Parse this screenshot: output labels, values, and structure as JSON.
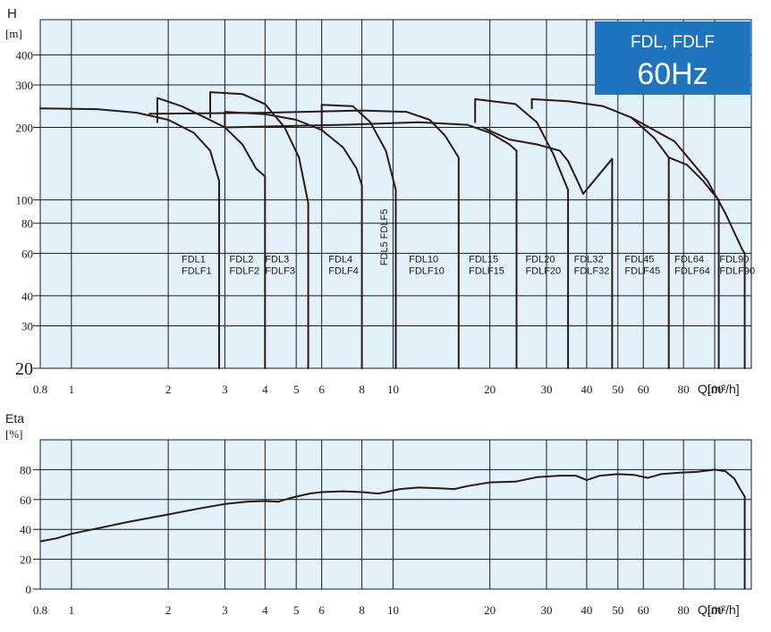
{
  "colors": {
    "plot_bg": "#e3f1fa",
    "grid": "#1a1a1a",
    "curve": "#2b1a14",
    "badge_bg": "#1f73bf",
    "badge_text": "#ffffff"
  },
  "chart_data": [
    {
      "id": "head",
      "type": "line",
      "xscale": "log",
      "yscale": "log",
      "xlim": [
        0.8,
        130
      ],
      "ylim": [
        20,
        560
      ],
      "grid": true,
      "ylabel": "H",
      "yunit": "[m]",
      "xlabel": "Q[m²/h]",
      "xticks": [
        {
          "v": 0.8,
          "label": "0.8"
        },
        {
          "v": 1,
          "label": "1"
        },
        {
          "v": 2,
          "label": "2"
        },
        {
          "v": 3,
          "label": "3"
        },
        {
          "v": 4,
          "label": "4"
        },
        {
          "v": 5,
          "label": "5"
        },
        {
          "v": 6,
          "label": "6"
        },
        {
          "v": 8,
          "label": "8"
        },
        {
          "v": 10,
          "label": "10"
        },
        {
          "v": 20,
          "label": "20"
        },
        {
          "v": 30,
          "label": "30"
        },
        {
          "v": 40,
          "label": "40"
        },
        {
          "v": 50,
          "label": "50"
        },
        {
          "v": 60,
          "label": "60"
        },
        {
          "v": 80,
          "label": "80"
        },
        {
          "v": 100,
          "label": "100"
        }
      ],
      "yticks": [
        {
          "v": 20,
          "label": "20"
        },
        {
          "v": 30,
          "label": "30"
        },
        {
          "v": 40,
          "label": "40"
        },
        {
          "v": 60,
          "label": "60"
        },
        {
          "v": 80,
          "label": "80"
        },
        {
          "v": 100,
          "label": "100"
        },
        {
          "v": 200,
          "label": "200"
        },
        {
          "v": 300,
          "label": "300"
        },
        {
          "v": 400,
          "label": "400"
        }
      ],
      "badge": {
        "line1": "FDL, FDLF",
        "line2": "60Hz"
      },
      "series": [
        {
          "name": "FDL1 FDLF1",
          "points": [
            [
              0.8,
              240
            ],
            [
              1.2,
              238
            ],
            [
              1.6,
              230
            ],
            [
              2.0,
              215
            ],
            [
              2.4,
              190
            ],
            [
              2.7,
              160
            ],
            [
              2.88,
              120
            ],
            [
              2.88,
              20
            ]
          ]
        },
        {
          "name": "FDL2 FDLF2",
          "points": [
            [
              1.85,
              210
            ],
            [
              1.85,
              265
            ],
            [
              2.2,
              245
            ],
            [
              2.6,
              220
            ],
            [
              3.0,
              200
            ],
            [
              3.4,
              170
            ],
            [
              3.75,
              135
            ],
            [
              4.0,
              125
            ],
            [
              4.0,
              20
            ]
          ]
        },
        {
          "name": "FDL3 FDLF3",
          "points": [
            [
              2.7,
              220
            ],
            [
              2.7,
              280
            ],
            [
              3.4,
              275
            ],
            [
              4.0,
              250
            ],
            [
              4.6,
              200
            ],
            [
              5.1,
              150
            ],
            [
              5.45,
              97
            ],
            [
              5.45,
              20
            ]
          ]
        },
        {
          "name": "FDL4 FDLF4",
          "points": [
            [
              3.0,
              200
            ],
            [
              3.0,
              232
            ],
            [
              4.0,
              227
            ],
            [
              5.0,
              215
            ],
            [
              6.0,
              195
            ],
            [
              7.0,
              165
            ],
            [
              7.7,
              135
            ],
            [
              8.0,
              115
            ],
            [
              8.0,
              20
            ]
          ]
        },
        {
          "name": "FDL5 FDLF5",
          "points": [
            [
              6.0,
              195
            ],
            [
              6.0,
              248
            ],
            [
              7.5,
              245
            ],
            [
              8.5,
              210
            ],
            [
              9.5,
              160
            ],
            [
              10.2,
              110
            ],
            [
              10.2,
              20
            ]
          ]
        },
        {
          "name": "FDL10 FDLF10",
          "points": [
            [
              1.75,
              228
            ],
            [
              4.0,
              230
            ],
            [
              8.0,
              235
            ],
            [
              11.0,
              232
            ],
            [
              13.0,
              215
            ],
            [
              14.5,
              185
            ],
            [
              16.0,
              150
            ],
            [
              16.0,
              20
            ]
          ]
        },
        {
          "name": "FDL15 FDLF15",
          "points": [
            [
              3.0,
              200
            ],
            [
              7.0,
              205
            ],
            [
              12.0,
              210
            ],
            [
              17.0,
              205
            ],
            [
              20.0,
              190
            ],
            [
              23.0,
              170
            ],
            [
              24.2,
              160
            ],
            [
              24.2,
              20
            ]
          ]
        },
        {
          "name": "FDL20 FDLF20",
          "points": [
            [
              18.0,
              210
            ],
            [
              18.0,
              262
            ],
            [
              24.0,
              250
            ],
            [
              28.0,
              210
            ],
            [
              31.5,
              155
            ],
            [
              35.0,
              110
            ],
            [
              35.0,
              20
            ]
          ]
        },
        {
          "name": "FDL32 FDLF32",
          "points": [
            [
              19.0,
              200
            ],
            [
              23.0,
              178
            ],
            [
              28.0,
              170
            ],
            [
              33.0,
              160
            ],
            [
              35.0,
              145
            ],
            [
              38.0,
              115
            ],
            [
              39.0,
              106
            ],
            [
              48.0,
              148
            ],
            [
              48.0,
              20
            ]
          ]
        },
        {
          "name": "FDL45 FDLF45",
          "points": [
            [
              27.0,
              240
            ],
            [
              27.0,
              262
            ],
            [
              35.0,
              257
            ],
            [
              45.0,
              245
            ],
            [
              55.0,
              220
            ],
            [
              65.0,
              180
            ],
            [
              72.0,
              150
            ],
            [
              72.0,
              20
            ]
          ]
        },
        {
          "name": "FDL64 FDLF64",
          "points": [
            [
              72.0,
              150
            ],
            [
              82.0,
              140
            ],
            [
              92.0,
              120
            ],
            [
              98.0,
              108
            ],
            [
              103.0,
              100
            ],
            [
              103.0,
              20
            ]
          ]
        },
        {
          "name": "FDL90 FDLF90",
          "points": [
            [
              55.0,
              220
            ],
            [
              75.0,
              175
            ],
            [
              95.0,
              120
            ],
            [
              108.0,
              88
            ],
            [
              122.0,
              62
            ],
            [
              124.0,
              60
            ],
            [
              124.0,
              20
            ]
          ]
        }
      ],
      "labels": [
        {
          "q": 2.2,
          "h": 55,
          "l1": "FDL1",
          "l2": "FDLF1"
        },
        {
          "q": 3.1,
          "h": 55,
          "l1": "FDL2",
          "l2": "FDLF2"
        },
        {
          "q": 4.0,
          "h": 55,
          "l1": "FDL3",
          "l2": "FDLF3"
        },
        {
          "q": 6.3,
          "h": 55,
          "l1": "FDL4",
          "l2": "FDLF4"
        },
        {
          "q": 11.2,
          "h": 55,
          "l1": "FDL10",
          "l2": "FDLF10"
        },
        {
          "q": 17.2,
          "h": 55,
          "l1": "FDL15",
          "l2": "FDLF15"
        },
        {
          "q": 25.8,
          "h": 55,
          "l1": "FDL20",
          "l2": "FDLF20"
        },
        {
          "q": 36.5,
          "h": 55,
          "l1": "FDL32",
          "l2": "FDLF32"
        },
        {
          "q": 52.5,
          "h": 55,
          "l1": "FDL45",
          "l2": "FDLF45"
        },
        {
          "q": 75.0,
          "h": 55,
          "l1": "FDL64",
          "l2": "FDLF64"
        },
        {
          "q": 103.5,
          "h": 55,
          "l1": "FDL90",
          "l2": "FDLF90"
        }
      ],
      "vertical_label": {
        "q": 9.6,
        "h": 70,
        "text": "FDL5 FDLF5"
      }
    },
    {
      "id": "efficiency",
      "type": "line",
      "xscale": "log",
      "xlim": [
        0.8,
        130
      ],
      "ylim": [
        0,
        100
      ],
      "grid": true,
      "ylabel": "Eta",
      "yunit": "[%]",
      "xlabel": "Q[m²/h]",
      "xticks": [
        {
          "v": 0.8,
          "label": "0.8"
        },
        {
          "v": 1,
          "label": "1"
        },
        {
          "v": 2,
          "label": "2"
        },
        {
          "v": 3,
          "label": "3"
        },
        {
          "v": 4,
          "label": "4"
        },
        {
          "v": 5,
          "label": "5"
        },
        {
          "v": 6,
          "label": "6"
        },
        {
          "v": 8,
          "label": "8"
        },
        {
          "v": 10,
          "label": "10"
        },
        {
          "v": 20,
          "label": "20"
        },
        {
          "v": 30,
          "label": "30"
        },
        {
          "v": 40,
          "label": "40"
        },
        {
          "v": 50,
          "label": "50"
        },
        {
          "v": 60,
          "label": "60"
        },
        {
          "v": 80,
          "label": "80"
        },
        {
          "v": 100,
          "label": "100"
        }
      ],
      "yticks": [
        {
          "v": 0,
          "label": "0"
        },
        {
          "v": 20,
          "label": "20"
        },
        {
          "v": 40,
          "label": "40"
        },
        {
          "v": 60,
          "label": "60"
        },
        {
          "v": 80,
          "label": "80"
        }
      ],
      "series": [
        {
          "name": "",
          "points": [
            [
              0.8,
              32
            ],
            [
              0.9,
              34
            ],
            [
              1.0,
              37
            ],
            [
              1.5,
              45
            ],
            [
              2.0,
              50
            ],
            [
              2.5,
              54
            ],
            [
              3.0,
              57
            ],
            [
              3.5,
              58.5
            ],
            [
              4.0,
              59
            ],
            [
              4.4,
              58.5
            ],
            [
              4.8,
              61
            ],
            [
              5.5,
              64
            ],
            [
              6.0,
              65
            ],
            [
              7.0,
              65.5
            ],
            [
              8.0,
              65
            ],
            [
              9.0,
              64
            ],
            [
              9.5,
              65
            ],
            [
              10.5,
              67
            ],
            [
              12.0,
              68
            ],
            [
              14.0,
              67.5
            ],
            [
              15.5,
              67
            ],
            [
              17.0,
              69
            ],
            [
              20.0,
              71.5
            ],
            [
              24.0,
              72
            ],
            [
              28.0,
              75
            ],
            [
              33.0,
              76
            ],
            [
              37.0,
              76
            ],
            [
              40.0,
              73
            ],
            [
              44.0,
              76
            ],
            [
              50.0,
              77
            ],
            [
              56.0,
              76.5
            ],
            [
              62.0,
              74.5
            ],
            [
              68.0,
              77
            ],
            [
              78.0,
              78
            ],
            [
              88.0,
              78.5
            ],
            [
              100.0,
              80
            ],
            [
              108.0,
              79
            ],
            [
              115.0,
              74
            ],
            [
              120.0,
              67
            ],
            [
              124.0,
              62
            ],
            [
              124.0,
              0
            ]
          ]
        }
      ]
    }
  ]
}
